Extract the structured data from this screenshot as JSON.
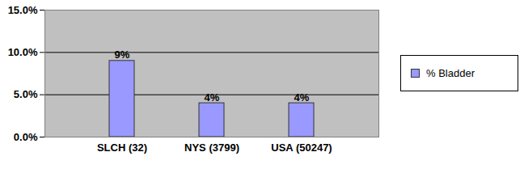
{
  "chart_data": {
    "type": "bar",
    "categories": [
      "SLCH (32)",
      "NYS (3799)",
      "USA (50247)"
    ],
    "series": [
      {
        "name": "% Bladder",
        "color": "#9999ff",
        "values": [
          9,
          4,
          4
        ],
        "value_labels": [
          "9%",
          "4%",
          "4%"
        ]
      }
    ],
    "ylim": [
      0,
      15
    ],
    "yticks": [
      {
        "value": 0,
        "label": "0.0%"
      },
      {
        "value": 5,
        "label": "5.0%"
      },
      {
        "value": 10,
        "label": "10.0%"
      },
      {
        "value": 15,
        "label": "15.0%"
      }
    ],
    "grid": true,
    "data_labels": true,
    "legend": "right"
  }
}
